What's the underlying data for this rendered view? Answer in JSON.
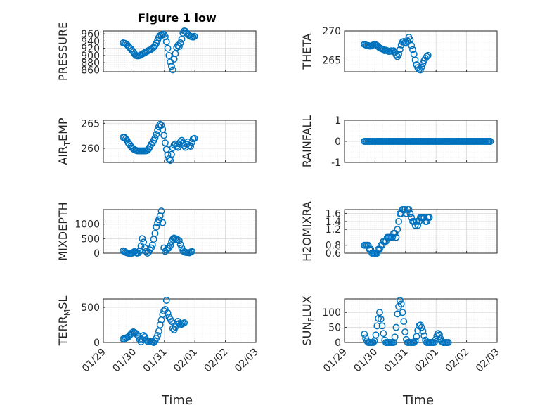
{
  "figure": {
    "title": "Figure 1 low",
    "xlabel": "Time"
  },
  "colors": {
    "marker": "#0072BD",
    "axis": "#262626",
    "grid": "#d9d9d9",
    "background": "#ffffff"
  },
  "chart_data": [
    {
      "type": "scatter",
      "name": "PRESSURE",
      "ylabel": "PRESSURE",
      "ylim": [
        855,
        968
      ],
      "yticks": [
        860,
        880,
        900,
        920,
        940,
        960
      ],
      "xticks": [
        "01/29",
        "01/30",
        "01/31",
        "02/01",
        "02/02",
        "02/03"
      ],
      "xtick_labels_shown": false,
      "x_start_day": 0.65,
      "x_step_days": 0.0417,
      "values": [
        935,
        934,
        933,
        930,
        926,
        922,
        918,
        914,
        910,
        904,
        900,
        899,
        899,
        900,
        902,
        904,
        906,
        908,
        910,
        912,
        914,
        915,
        917,
        920,
        923,
        928,
        934,
        942,
        950,
        955,
        957,
        959,
        958,
        952,
        938,
        920,
        900,
        882,
        870,
        860,
        890,
        905,
        922,
        928,
        925,
        935,
        945,
        962,
        968,
        967,
        962,
        958,
        955,
        953,
        952,
        951,
        953
      ]
    },
    {
      "type": "scatter",
      "name": "THETA",
      "ylabel": "THETA",
      "ylim": [
        263,
        270
      ],
      "yticks": [
        265,
        270
      ],
      "xticks": [
        "01/29",
        "01/30",
        "01/31",
        "02/01",
        "02/02",
        "02/03"
      ],
      "xtick_labels_shown": false,
      "x_start_day": 0.65,
      "x_step_days": 0.0417,
      "values": [
        267.7,
        267.6,
        267.5,
        267.5,
        267.4,
        267.4,
        267.5,
        267.6,
        267.7,
        267.6,
        267.5,
        267.3,
        267.1,
        267.0,
        266.9,
        266.8,
        266.6,
        266.7,
        266.6,
        266.5,
        266.5,
        266.6,
        266.5,
        266.6,
        266.3,
        265.9,
        265.6,
        266.0,
        266.8,
        267.6,
        268.1,
        268.2,
        268.0,
        267.9,
        268.3,
        268.9,
        268.5,
        267.5,
        266.8,
        266.0,
        265.0,
        264.2,
        263.7,
        263.4,
        263.3,
        263.8,
        264.4,
        264.9,
        265.3,
        265.6,
        265.8
      ]
    },
    {
      "type": "scatter",
      "name": "AIR_TEMP",
      "ylabel": "AIR_TEMP",
      "ylim": [
        257.2,
        265.6
      ],
      "yticks": [
        260,
        265
      ],
      "xticks": [
        "01/29",
        "01/30",
        "01/31",
        "02/01",
        "02/02",
        "02/03"
      ],
      "xtick_labels_shown": false,
      "x_start_day": 0.65,
      "x_step_days": 0.0417,
      "values": [
        262.2,
        262.2,
        261.9,
        261.6,
        261.1,
        260.8,
        260.4,
        260.1,
        259.9,
        259.7,
        259.6,
        259.5,
        259.5,
        259.5,
        259.5,
        259.5,
        259.5,
        259.5,
        259.5,
        259.6,
        259.9,
        260.3,
        260.8,
        261.1,
        261.6,
        262.1,
        262.8,
        263.6,
        264.3,
        264.8,
        264.6,
        263.8,
        262.6,
        261.1,
        259.8,
        258.7,
        257.9,
        257.6,
        258.8,
        260.1,
        260.7,
        260.9,
        260.4,
        260.2,
        260.9,
        261.3,
        261.6,
        261.1,
        260.5,
        260.2,
        260.8,
        261.3,
        260.6,
        260.4,
        261.2,
        261.9,
        262.0
      ]
    },
    {
      "type": "scatter",
      "name": "RAINFALL",
      "ylabel": "RAINFALL",
      "ylim": [
        -1,
        1
      ],
      "yticks": [
        -1,
        0,
        1
      ],
      "xticks": [
        "01/29",
        "01/30",
        "01/31",
        "02/01",
        "02/02",
        "02/03"
      ],
      "xtick_labels_shown": false,
      "x_start_day": 0.65,
      "x_step_days": 0.0417,
      "values": [
        0,
        0,
        0,
        0,
        0,
        0,
        0,
        0,
        0,
        0,
        0,
        0,
        0,
        0,
        0,
        0,
        0,
        0,
        0,
        0,
        0,
        0,
        0,
        0,
        0,
        0,
        0,
        0,
        0,
        0,
        0,
        0,
        0,
        0,
        0,
        0,
        0,
        0,
        0,
        0,
        0,
        0,
        0,
        0,
        0,
        0,
        0,
        0,
        0,
        0,
        0,
        0,
        0,
        0,
        0,
        0,
        0,
        0,
        0,
        0,
        0,
        0,
        0,
        0,
        0,
        0,
        0,
        0,
        0,
        0,
        0,
        0,
        0,
        0,
        0,
        0,
        0,
        0,
        0,
        0,
        0,
        0,
        0,
        0,
        0,
        0,
        0,
        0,
        0,
        0,
        0,
        0,
        0,
        0,
        0,
        0,
        0,
        0,
        0,
        0
      ]
    },
    {
      "type": "scatter",
      "name": "MIXDEPTH",
      "ylabel": "MIXDEPTH",
      "ylim": [
        0,
        1500
      ],
      "yticks": [
        0,
        500,
        1000
      ],
      "xticks": [
        "01/29",
        "01/30",
        "01/31",
        "02/01",
        "02/02",
        "02/03"
      ],
      "xtick_labels_shown": false,
      "x_start_day": 0.65,
      "x_step_days": 0.0417,
      "values": [
        80,
        60,
        30,
        10,
        0,
        0,
        0,
        0,
        30,
        60,
        20,
        0,
        10,
        80,
        250,
        500,
        380,
        180,
        60,
        0,
        40,
        120,
        180,
        280,
        480,
        680,
        900,
        1050,
        1150,
        1280,
        1450,
        1050,
        180,
        60,
        110,
        160,
        180,
        260,
        400,
        480,
        520,
        500,
        470,
        460,
        430,
        300,
        180,
        80,
        40,
        30,
        20,
        20,
        10,
        40,
        60
      ]
    },
    {
      "type": "scatter",
      "name": "H2OMIXRA",
      "ylabel": "H2OMIXRA",
      "ylim": [
        0.6,
        1.7
      ],
      "yticks": [
        0.6,
        0.8,
        1.2,
        1.4,
        1.6
      ],
      "xticks": [
        "01/29",
        "01/30",
        "01/31",
        "02/01",
        "02/02",
        "02/03"
      ],
      "xtick_labels_shown": false,
      "x_start_day": 0.65,
      "x_step_days": 0.0417,
      "values": [
        0.8,
        0.8,
        0.8,
        0.8,
        0.7,
        0.7,
        0.6,
        0.6,
        0.6,
        0.6,
        0.6,
        0.7,
        0.7,
        0.8,
        0.8,
        0.9,
        0.9,
        0.9,
        1.0,
        1.0,
        1.0,
        1.0,
        1.0,
        1.1,
        1.1,
        1.0,
        1.2,
        1.4,
        1.6,
        1.6,
        1.7,
        1.7,
        1.7,
        1.6,
        1.7,
        1.7,
        1.6,
        1.5,
        1.4,
        1.4,
        1.3,
        1.4,
        1.3,
        1.4,
        1.5,
        1.5,
        1.5,
        1.5,
        1.4,
        1.4,
        1.5,
        1.5
      ]
    },
    {
      "type": "scatter",
      "name": "TERR_MSL",
      "ylabel": "TERR_MSL",
      "ylim": [
        0,
        620
      ],
      "yticks": [
        0,
        500
      ],
      "xticks": [
        "01/29",
        "01/30",
        "01/31",
        "02/01",
        "02/02",
        "02/03"
      ],
      "xtick_labels_shown": true,
      "x_start_day": 0.65,
      "x_step_days": 0.0417,
      "values": [
        50,
        50,
        60,
        70,
        80,
        100,
        120,
        140,
        150,
        140,
        130,
        110,
        90,
        40,
        10,
        40,
        100,
        80,
        40,
        20,
        10,
        20,
        10,
        10,
        0,
        20,
        60,
        100,
        160,
        250,
        320,
        400,
        450,
        470,
        600,
        420,
        360,
        330,
        300,
        200,
        180,
        220,
        260,
        300,
        270,
        250,
        260,
        270,
        280
      ]
    },
    {
      "type": "scatter",
      "name": "SUN_FLUX",
      "ylabel": "SUN_FLUX",
      "ylim": [
        0,
        145
      ],
      "yticks": [
        0,
        50,
        100
      ],
      "xticks": [
        "01/29",
        "01/30",
        "01/31",
        "02/01",
        "02/02",
        "02/03"
      ],
      "xtick_labels_shown": true,
      "x_start_day": 0.65,
      "x_step_days": 0.0417,
      "values": [
        28,
        15,
        5,
        0,
        0,
        0,
        0,
        0,
        5,
        25,
        55,
        80,
        100,
        78,
        55,
        30,
        8,
        0,
        0,
        0,
        0,
        0,
        0,
        0,
        18,
        50,
        95,
        120,
        140,
        128,
        100,
        70,
        35,
        10,
        0,
        0,
        0,
        0,
        0,
        0,
        5,
        20,
        40,
        55,
        58,
        50,
        38,
        22,
        8,
        0,
        0,
        0,
        0,
        0,
        0,
        0,
        10,
        22,
        30,
        25,
        12,
        3,
        0,
        0,
        0,
        0,
        0
      ]
    }
  ]
}
